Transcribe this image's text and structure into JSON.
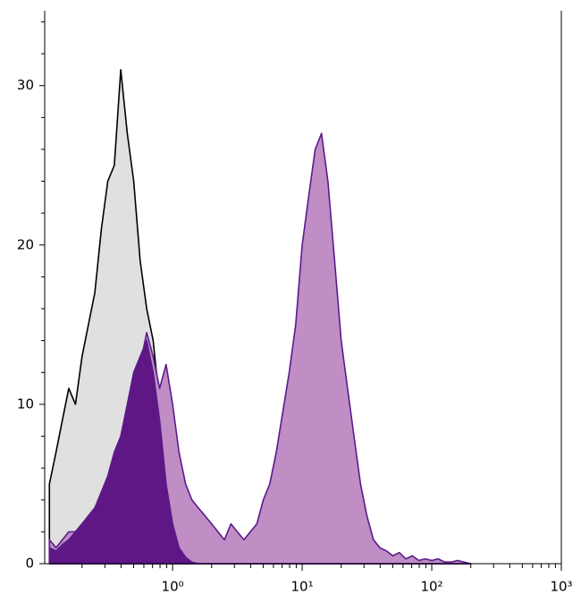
{
  "chart_data": {
    "type": "histogram-overlay",
    "xscale": "log",
    "x": [
      0.112,
      0.126,
      0.141,
      0.158,
      0.178,
      0.2,
      0.224,
      0.251,
      0.282,
      0.316,
      0.355,
      0.398,
      0.447,
      0.501,
      0.562,
      0.631,
      0.708,
      0.794,
      0.891,
      1,
      1.12,
      1.26,
      1.41,
      1.58,
      1.78,
      2,
      2.24,
      2.51,
      2.82,
      3.16,
      3.55,
      3.98,
      4.47,
      5.01,
      5.62,
      6.31,
      7.08,
      7.94,
      8.91,
      10,
      11.2,
      12.6,
      14.1,
      15.8,
      17.8,
      20,
      22.4,
      25.1,
      28.2,
      31.6,
      35.5,
      39.8,
      44.7,
      50.1,
      56.2,
      63.1,
      70.8,
      79.4,
      89.1,
      100,
      112,
      126,
      141,
      158,
      178,
      200
    ],
    "series": [
      {
        "color": "#000000",
        "fill": "#e0e0e0",
        "values": [
          5,
          7,
          9,
          11,
          10,
          13,
          15,
          17,
          21,
          24,
          25,
          31,
          27,
          24,
          19,
          16,
          14,
          10,
          6,
          3,
          1.5,
          0.5,
          0.2,
          0,
          0,
          0,
          0,
          0,
          0,
          0,
          0,
          0,
          0,
          0,
          0,
          0,
          0,
          0,
          0,
          0,
          0,
          0,
          0,
          0,
          0,
          0,
          0,
          0,
          0,
          0,
          0,
          0,
          0,
          0,
          0,
          0,
          0,
          0,
          0,
          0,
          0,
          0,
          0,
          0,
          0,
          0
        ]
      },
      {
        "color": "#5a1a8c",
        "fill": "#c08dc4",
        "values": [
          1.5,
          1,
          1.5,
          2,
          2,
          2.5,
          3,
          3.5,
          4,
          5,
          6,
          7.5,
          9,
          11,
          12.5,
          14.5,
          13,
          11,
          12.5,
          10,
          7,
          5,
          4,
          3.5,
          3,
          2.5,
          2,
          1.5,
          2.5,
          2,
          1.5,
          2,
          2.5,
          4,
          5,
          7,
          9.5,
          12,
          15,
          20,
          23,
          26,
          27,
          24,
          19,
          14,
          11,
          8,
          5,
          3,
          1.5,
          1,
          0.8,
          0.5,
          0.7,
          0.3,
          0.5,
          0.2,
          0.3,
          0.2,
          0.3,
          0.1,
          0.1,
          0.2,
          0.1,
          0
        ]
      },
      {
        "color": "#5a1a8c",
        "fill": "#5e1785",
        "values": [
          1,
          0.8,
          1.2,
          1.5,
          2,
          2.5,
          3,
          3.5,
          4.5,
          5.5,
          7,
          8,
          10,
          12,
          13,
          14,
          12,
          9,
          5,
          2.5,
          1,
          0.4,
          0.1,
          0,
          0,
          0,
          0,
          0,
          0,
          0,
          0,
          0,
          0,
          0,
          0,
          0,
          0,
          0,
          0,
          0,
          0,
          0,
          0,
          0,
          0,
          0,
          0,
          0,
          0,
          0,
          0,
          0,
          0,
          0,
          0,
          0,
          0,
          0,
          0,
          0,
          0,
          0,
          0,
          0,
          0,
          0
        ]
      }
    ],
    "xlim": [
      0.103,
      1000
    ],
    "xticks": [
      {
        "value": 1,
        "label": "10⁰"
      },
      {
        "value": 10,
        "label": "10¹"
      },
      {
        "value": 100,
        "label": "10²"
      },
      {
        "value": 1000,
        "label": "10³"
      }
    ],
    "xminorticks": [
      0.2,
      0.3,
      0.4,
      0.5,
      0.6,
      0.7,
      0.8,
      0.9,
      2,
      3,
      4,
      5,
      6,
      7,
      8,
      9,
      20,
      30,
      40,
      50,
      60,
      70,
      80,
      90,
      200,
      300,
      400,
      500,
      600,
      700,
      800,
      900
    ],
    "ylim": [
      0,
      34.7
    ],
    "yticks": [
      0,
      10,
      20,
      30
    ],
    "yminorticks": [
      2,
      4,
      6,
      8,
      12,
      14,
      16,
      18,
      22,
      24,
      26,
      28,
      32,
      34
    ]
  }
}
